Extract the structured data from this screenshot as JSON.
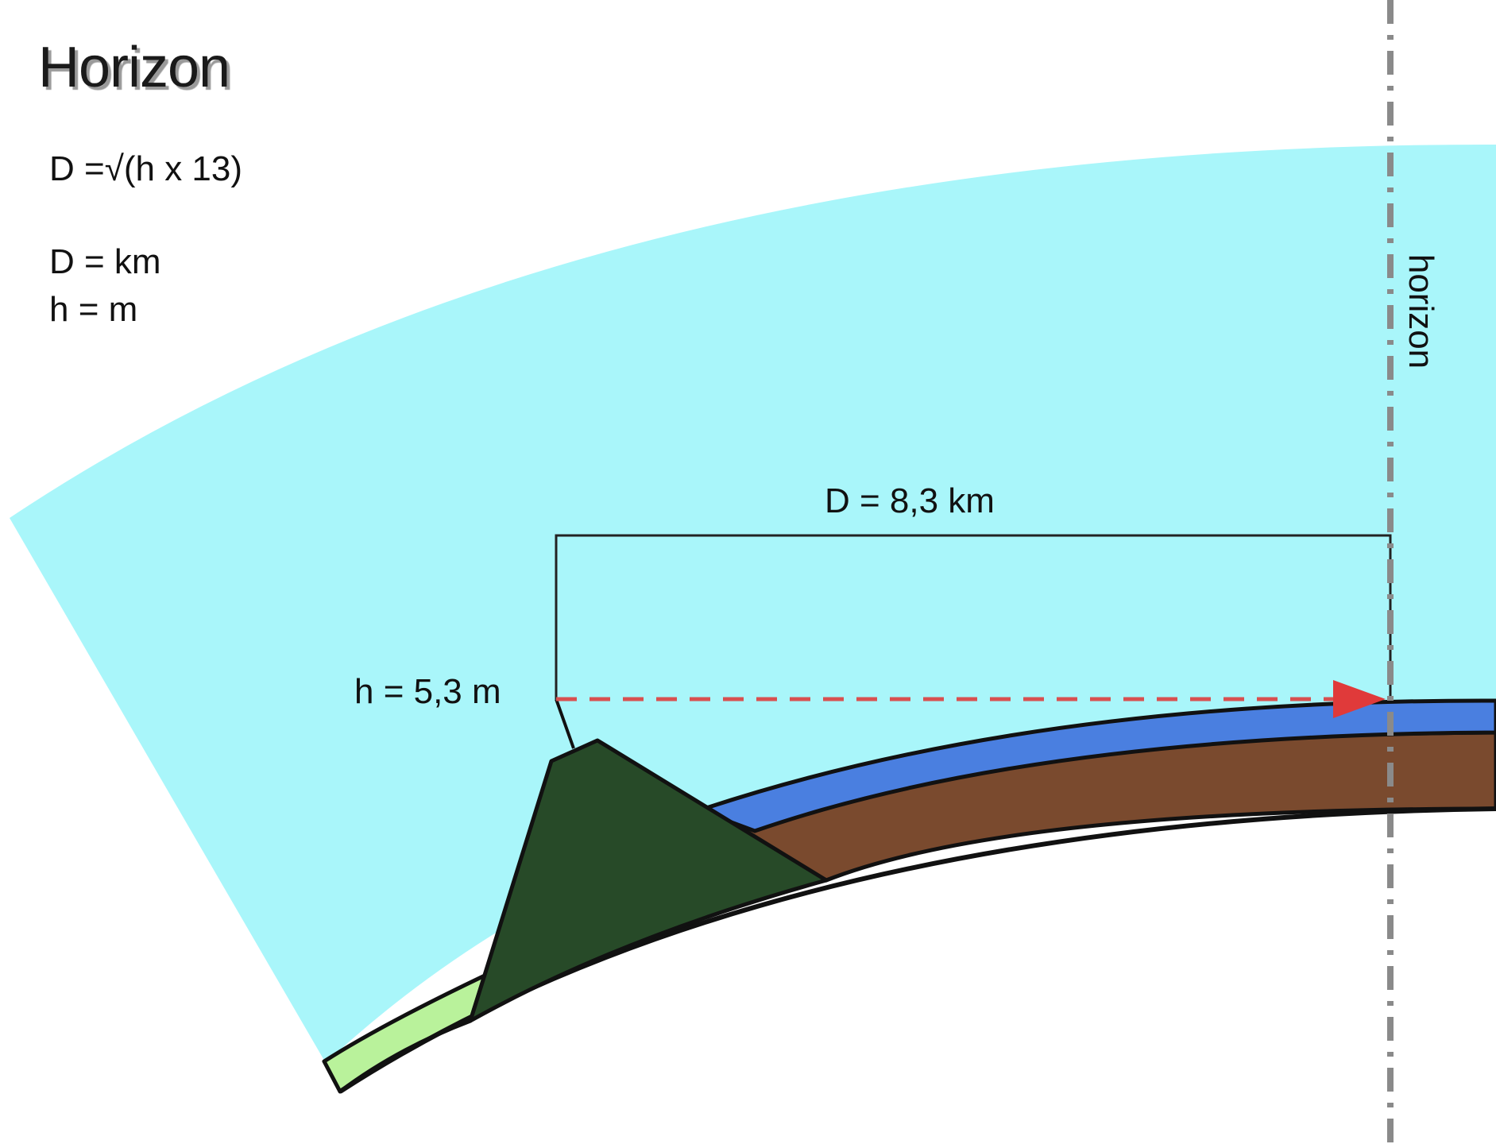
{
  "title": "Horizon",
  "formula": "D =√(h x 13)",
  "units": {
    "distance": "D = km",
    "height": "h = m"
  },
  "measurements": {
    "distance": "D = 8,3 km",
    "height": "h = 5,3 m"
  },
  "horizon_label": "horizon",
  "colors": {
    "sky": "#a9f6fa",
    "water": "#4a7fe0",
    "soil": "#7a4a2e",
    "mountain": "#274a28",
    "grass": "#b9f29b",
    "sight_line": "#e05050",
    "arrow": "#e03a3a",
    "horizon_line": "#8a8a8a",
    "outline": "#111111"
  }
}
